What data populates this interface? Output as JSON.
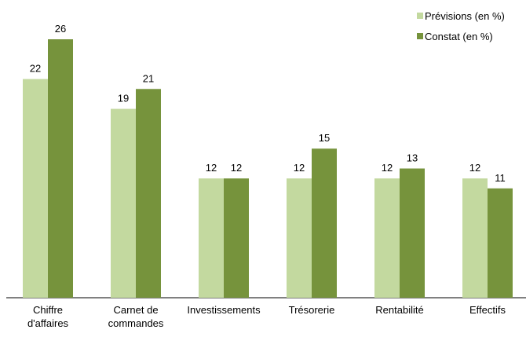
{
  "chart_data": {
    "type": "bar",
    "categories": [
      "Chiffre\nd'affaires",
      "Carnet de\ncommandes",
      "Investissements",
      "Trésorerie",
      "Rentabilité",
      "Effectifs"
    ],
    "series": [
      {
        "name": "Prévisions (en %)",
        "color": "#c3d99f",
        "values": [
          22,
          19,
          12,
          12,
          12,
          12
        ]
      },
      {
        "name": "Constat (en %)",
        "color": "#76933c",
        "values": [
          26,
          21,
          12,
          15,
          13,
          11
        ]
      }
    ],
    "legend": "top-right"
  }
}
